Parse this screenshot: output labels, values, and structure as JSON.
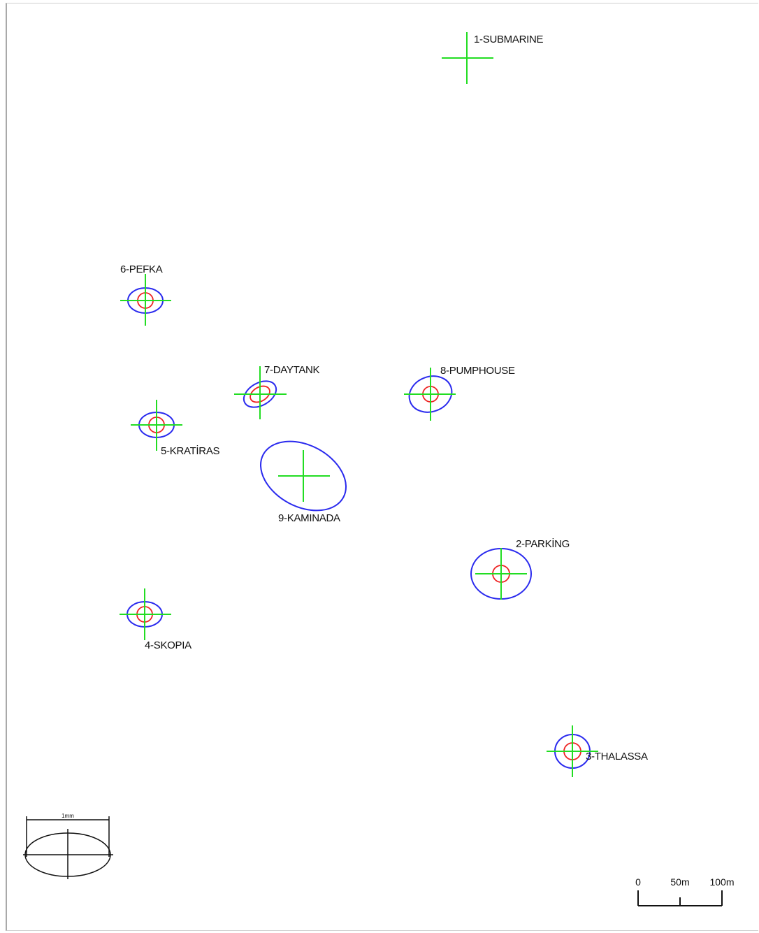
{
  "colors": {
    "crosshair": "#22dd22",
    "outer_ellipse": "#2a2aee",
    "inner_circle": "#ee2222",
    "legend_stroke": "#111111",
    "scale_stroke": "#111111"
  },
  "stations": [
    {
      "id": "1",
      "label": "1-SUBMARINE"
    },
    {
      "id": "6",
      "label": "6-PEFKA"
    },
    {
      "id": "7",
      "label": "7-DAYTANK"
    },
    {
      "id": "8",
      "label": "8-PUMPHOUSE"
    },
    {
      "id": "5",
      "label": "5-KRATİRAS"
    },
    {
      "id": "9",
      "label": "9-KAMINADA"
    },
    {
      "id": "2",
      "label": "2-PARKİNG"
    },
    {
      "id": "4",
      "label": "4-SKOPIA"
    },
    {
      "id": "3",
      "label": "3-THALASSA"
    }
  ],
  "legend": {
    "dimension_label": "1mm"
  },
  "scale_bar": {
    "labels": [
      "0",
      "50m",
      "100m"
    ]
  }
}
